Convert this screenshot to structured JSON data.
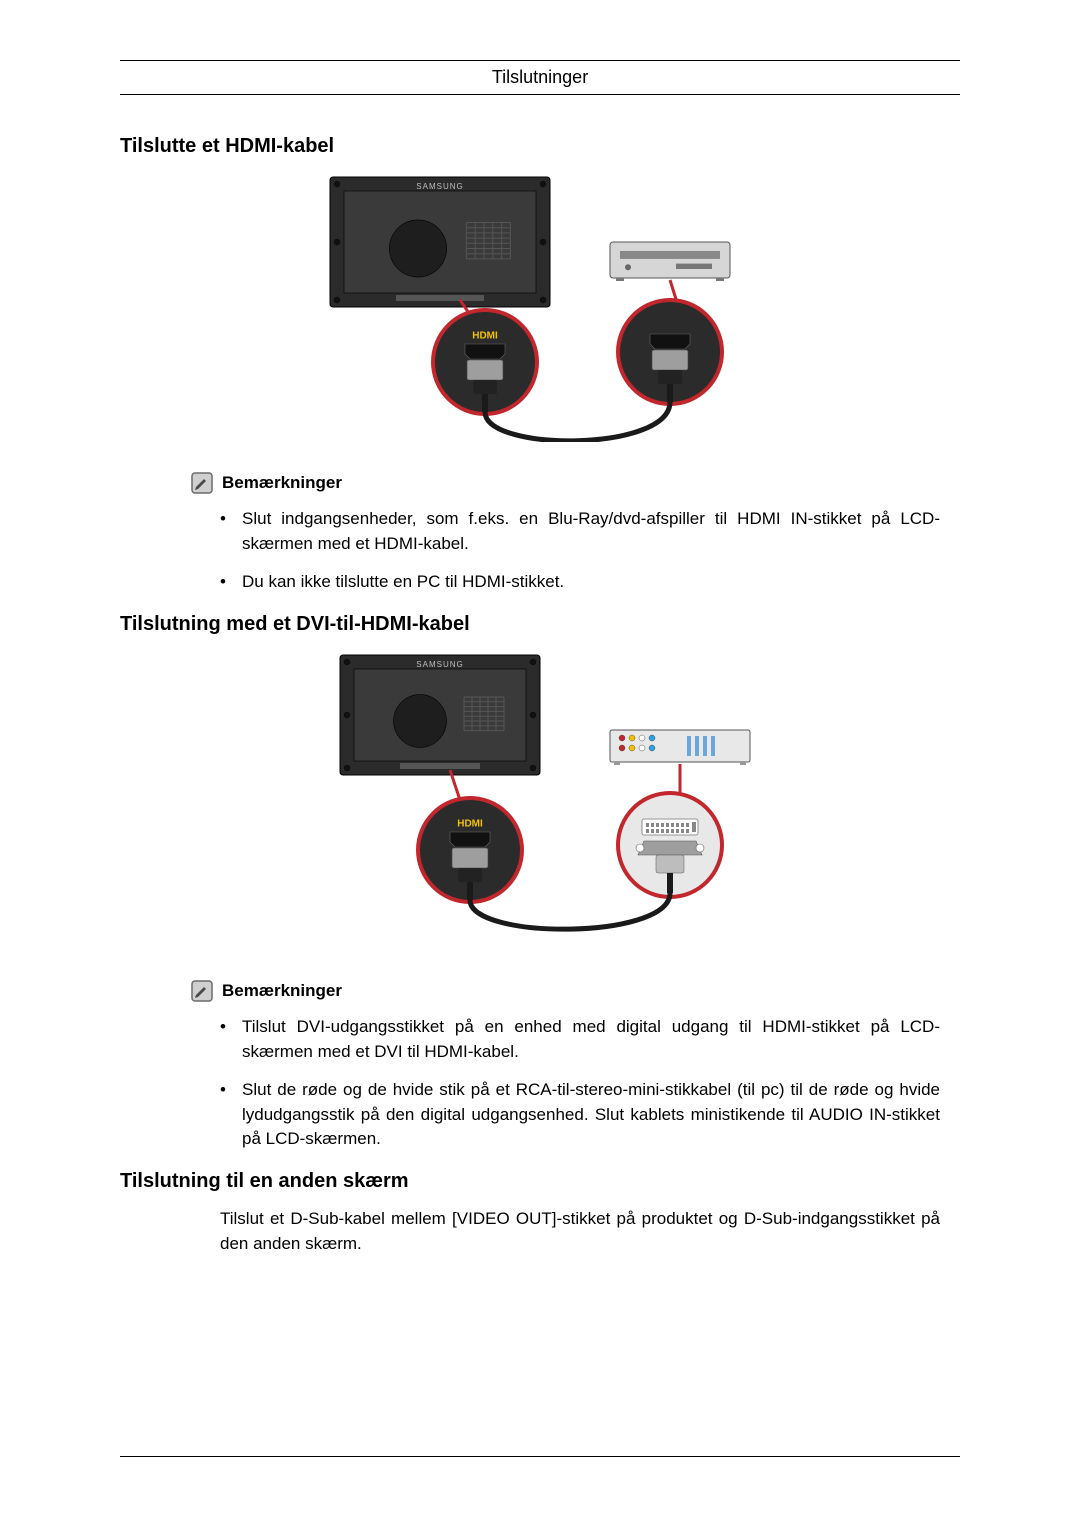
{
  "header": {
    "title": "Tilslutninger"
  },
  "sections": {
    "hdmi": {
      "title": "Tilslutte et HDMI-kabel",
      "note_label": "Bemærkninger",
      "bullets": [
        "Slut indgangsenheder, som f.eks. en Blu-Ray/dvd-afspiller til HDMI IN-stikket på LCD-skærmen med et HDMI-kabel.",
        "Du kan ikke tilslutte en PC til HDMI-stikket."
      ],
      "figure": {
        "type": "connection-diagram",
        "monitor": {
          "brand_text": "SAMSUNG",
          "body_color": "#2b2b2b",
          "screen_color": "#3a3a3a",
          "screw_color": "#111111",
          "grill_color": "#555555"
        },
        "source_device": {
          "kind": "dvd-player",
          "body_color": "#d6d6d6",
          "slot_color": "#888888"
        },
        "zoom_a": {
          "ring_color": "#c1272d",
          "fill_color": "#2b2b2b",
          "port_kind": "hdmi",
          "port_label": "HDMI",
          "label_color": "#f2c200",
          "connector_body": "#9e9e9e"
        },
        "zoom_b": {
          "ring_color": "#c1272d",
          "fill_color": "#2b2b2b",
          "port_kind": "hdmi",
          "port_label": "",
          "connector_body": "#9e9e9e"
        },
        "cable": {
          "color": "#1a1a1a",
          "width": 5
        },
        "callout_line": {
          "color": "#c1272d",
          "width": 3
        }
      }
    },
    "dvi_hdmi": {
      "title": "Tilslutning med et DVI-til-HDMI-kabel",
      "note_label": "Bemærkninger",
      "bullets": [
        "Tilslut DVI-udgangsstikket på en enhed med digital udgang til HDMI-stikket på LCD-skærmen med et DVI til HDMI-kabel.",
        "Slut de røde og de hvide stik på et RCA-til-stereo-mini-stikkabel (til pc) til de røde og hvide lydudgangsstik på den digital udgangsenhed. Slut kablets ministikende til AUDIO IN-stikket på LCD-skærmen."
      ],
      "figure": {
        "type": "connection-diagram",
        "monitor": {
          "brand_text": "SAMSUNG",
          "body_color": "#2b2b2b",
          "screen_color": "#3a3a3a",
          "screw_color": "#111111",
          "grill_color": "#555555"
        },
        "source_device": {
          "kind": "av-receiver",
          "body_color": "#e8e8e8",
          "jack_colors": [
            "#c1272d",
            "#f2c200",
            "#ffffff",
            "#2aa3e0"
          ],
          "slot_color": "#6aa6d8"
        },
        "zoom_a": {
          "ring_color": "#c1272d",
          "fill_color": "#2b2b2b",
          "port_kind": "hdmi",
          "port_label": "HDMI",
          "label_color": "#f2c200",
          "connector_body": "#9e9e9e"
        },
        "zoom_b": {
          "ring_color": "#c1272d",
          "fill_color": "#e8e8e8",
          "port_kind": "dvi",
          "port_label": "",
          "connector_body": "#9e9e9e",
          "screw_color": "#ffffff"
        },
        "cable": {
          "color": "#1a1a1a",
          "width": 5
        },
        "callout_line": {
          "color": "#c1272d",
          "width": 3
        }
      }
    },
    "other_screen": {
      "title": "Tilslutning til en anden skærm",
      "paragraph": "Tilslut et D-Sub-kabel mellem [VIDEO OUT]-stikket på produktet og D-Sub-indgangsstikket på den anden skærm."
    }
  },
  "icons": {
    "note": {
      "stroke": "#6b6b6b",
      "fill": "#d0d0d0",
      "pencil": "#4a4a4a"
    }
  }
}
